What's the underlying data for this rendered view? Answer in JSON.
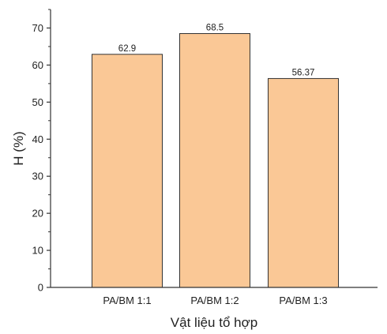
{
  "chart_data": {
    "type": "bar",
    "title": "",
    "xlabel": "Vật liệu tổ hợp",
    "ylabel": "H (%)",
    "categories": [
      "PA/BM 1:1",
      "PA/BM 1:2",
      "PA/BM 1:3"
    ],
    "values": [
      62.9,
      68.5,
      56.37
    ],
    "data_labels": [
      "62.9",
      "68.5",
      "56.37"
    ],
    "ylim": [
      0,
      75
    ],
    "yticks": [
      0,
      10,
      20,
      30,
      40,
      50,
      60,
      70
    ],
    "ytick_labels": [
      "0",
      "10",
      "20",
      "30",
      "40",
      "50",
      "60",
      "70"
    ],
    "bar_color": "#fac896",
    "bar_edge_color": "#333333",
    "grid": false,
    "legend": "none"
  }
}
